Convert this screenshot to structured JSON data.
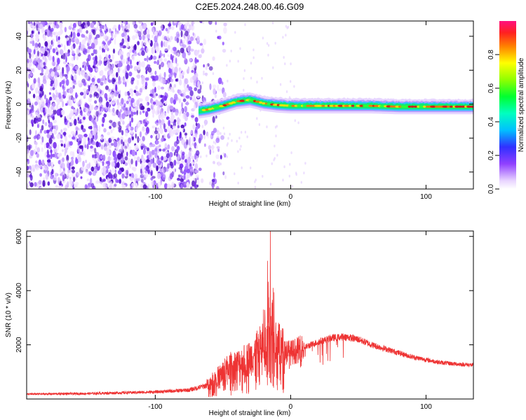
{
  "title": "C2E5.2024.248.00.46.G09",
  "chart_data": [
    {
      "type": "heatmap",
      "xlabel": "Height of straight line (km)",
      "ylabel": "Frequency (Hz)",
      "xlim": [
        -195,
        135
      ],
      "ylim": [
        -50,
        49
      ],
      "xticks": [
        -100,
        0,
        100
      ],
      "xtick_labels": [
        "-100",
        "0",
        "100"
      ],
      "yticks": [
        -40,
        -20,
        0,
        20,
        40
      ],
      "ytick_labels": [
        "-40",
        "-20",
        "0",
        "20",
        "40"
      ],
      "noise_region_x": [
        -195,
        -68
      ],
      "signal_trace": [
        {
          "x": -68,
          "y": -4
        },
        {
          "x": -60,
          "y": -3
        },
        {
          "x": -50,
          "y": -1
        },
        {
          "x": -40,
          "y": 1.5
        },
        {
          "x": -30,
          "y": 2.5
        },
        {
          "x": -20,
          "y": 0.5
        },
        {
          "x": -10,
          "y": -0.5
        },
        {
          "x": 0,
          "y": -1
        },
        {
          "x": 20,
          "y": -1
        },
        {
          "x": 40,
          "y": -1
        },
        {
          "x": 60,
          "y": -1
        },
        {
          "x": 80,
          "y": -1.5
        },
        {
          "x": 100,
          "y": -1.5
        },
        {
          "x": 120,
          "y": -1.5
        },
        {
          "x": 135,
          "y": -1.5
        }
      ],
      "colorbar": {
        "label": "Normalized spectral amplitude",
        "range": [
          0,
          1
        ],
        "ticks": [
          0.0,
          0.2,
          0.4,
          0.6,
          0.8
        ],
        "tick_labels": [
          "0.0",
          "0.2",
          "0.4",
          "0.6",
          "0.8"
        ]
      }
    },
    {
      "type": "line",
      "xlabel": "Height of straight line (km)",
      "ylabel": "SNR (10 * v/v)",
      "xlim": [
        -195,
        135
      ],
      "ylim": [
        0,
        6200
      ],
      "xticks": [
        -100,
        0,
        100
      ],
      "xtick_labels": [
        "-100",
        "0",
        "100"
      ],
      "yticks": [
        2000,
        4000,
        6000
      ],
      "ytick_labels": [
        "2000",
        "4000",
        "6000"
      ],
      "series": [
        {
          "color": "#ee3333",
          "envelope": [
            {
              "x": -195,
              "y": 180
            },
            {
              "x": -150,
              "y": 200
            },
            {
              "x": -100,
              "y": 260
            },
            {
              "x": -75,
              "y": 330
            },
            {
              "x": -62,
              "y": 500
            },
            {
              "x": -52,
              "y": 900
            },
            {
              "x": -45,
              "y": 1200
            },
            {
              "x": -38,
              "y": 1300
            },
            {
              "x": -30,
              "y": 1500
            },
            {
              "x": -24,
              "y": 1800
            },
            {
              "x": -18,
              "y": 2200
            },
            {
              "x": -14,
              "y": 2400
            },
            {
              "x": -8,
              "y": 1900
            },
            {
              "x": 0,
              "y": 1700
            },
            {
              "x": 10,
              "y": 1900
            },
            {
              "x": 20,
              "y": 2100
            },
            {
              "x": 30,
              "y": 2250
            },
            {
              "x": 40,
              "y": 2300
            },
            {
              "x": 50,
              "y": 2200
            },
            {
              "x": 60,
              "y": 2000
            },
            {
              "x": 70,
              "y": 1850
            },
            {
              "x": 80,
              "y": 1700
            },
            {
              "x": 90,
              "y": 1550
            },
            {
              "x": 100,
              "y": 1450
            },
            {
              "x": 110,
              "y": 1350
            },
            {
              "x": 120,
              "y": 1300
            },
            {
              "x": 135,
              "y": 1250
            }
          ],
          "peaks": [
            {
              "x": -17,
              "y": 5100
            },
            {
              "x": -15,
              "y": 6200
            },
            {
              "x": -13,
              "y": 4100
            },
            {
              "x": -20,
              "y": 3300
            }
          ]
        }
      ]
    }
  ]
}
